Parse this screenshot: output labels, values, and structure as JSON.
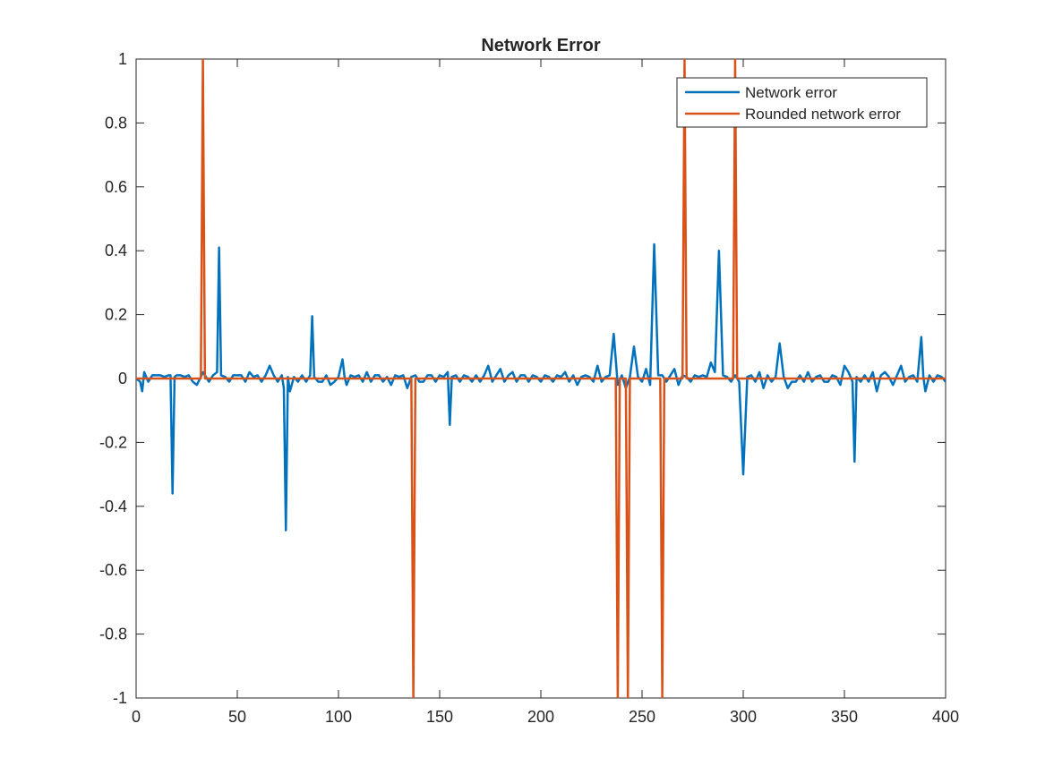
{
  "chart_data": {
    "type": "line",
    "title": "Network Error",
    "xlabel": "",
    "ylabel": "",
    "xlim": [
      0,
      400
    ],
    "ylim": [
      -1,
      1
    ],
    "xticks": [
      0,
      50,
      100,
      150,
      200,
      250,
      300,
      350,
      400
    ],
    "xtick_labels": [
      "0",
      "50",
      "100",
      "150",
      "200",
      "250",
      "300",
      "350",
      "400"
    ],
    "yticks": [
      -1,
      -0.8,
      -0.6,
      -0.4,
      -0.2,
      0,
      0.2,
      0.4,
      0.6,
      0.8,
      1
    ],
    "ytick_labels": [
      "-1",
      "-0.8",
      "-0.6",
      "-0.4",
      "-0.2",
      "0",
      "0.2",
      "0.4",
      "0.6",
      "0.8",
      "1"
    ],
    "grid": false,
    "legend_position": "top-right",
    "series": [
      {
        "name": "Network error",
        "color": "#0072BD",
        "x": [
          0,
          2,
          3,
          4,
          6,
          8,
          10,
          12,
          14,
          16,
          17,
          18,
          19,
          20,
          22,
          24,
          26,
          28,
          30,
          32,
          33,
          34,
          36,
          38,
          40,
          41,
          42,
          44,
          46,
          48,
          50,
          52,
          54,
          56,
          58,
          60,
          62,
          64,
          66,
          68,
          70,
          72,
          73,
          74,
          75,
          76,
          78,
          80,
          82,
          84,
          86,
          87,
          88,
          90,
          92,
          94,
          96,
          98,
          100,
          102,
          103,
          104,
          106,
          108,
          110,
          112,
          114,
          116,
          118,
          120,
          122,
          124,
          126,
          128,
          130,
          132,
          134,
          136,
          138,
          140,
          142,
          144,
          146,
          148,
          150,
          152,
          154,
          155,
          156,
          158,
          160,
          162,
          164,
          166,
          168,
          170,
          172,
          174,
          176,
          178,
          180,
          182,
          184,
          186,
          188,
          190,
          192,
          194,
          196,
          198,
          200,
          202,
          204,
          206,
          208,
          210,
          212,
          214,
          216,
          218,
          220,
          222,
          224,
          226,
          228,
          230,
          232,
          234,
          236,
          238,
          240,
          242,
          244,
          246,
          248,
          250,
          252,
          254,
          256,
          258,
          260,
          262,
          264,
          266,
          268,
          270,
          272,
          274,
          276,
          278,
          280,
          282,
          284,
          286,
          288,
          290,
          292,
          294,
          296,
          298,
          300,
          302,
          304,
          306,
          308,
          310,
          312,
          314,
          316,
          318,
          320,
          322,
          324,
          326,
          328,
          330,
          332,
          334,
          336,
          338,
          340,
          342,
          344,
          346,
          348,
          350,
          352,
          354,
          355,
          356,
          358,
          360,
          362,
          364,
          366,
          368,
          370,
          372,
          374,
          376,
          378,
          380,
          382,
          384,
          386,
          388,
          389,
          390,
          392,
          394,
          396,
          398,
          400
        ],
        "values": [
          0,
          -0.01,
          -0.04,
          0.02,
          -0.01,
          0.01,
          0.01,
          0.01,
          0.005,
          0.01,
          0.01,
          -0.36,
          0.005,
          0.01,
          0.01,
          0.005,
          0.01,
          -0.01,
          -0.02,
          0.005,
          0.02,
          0.01,
          -0.01,
          0.01,
          0.02,
          0.41,
          0.01,
          0.005,
          -0.01,
          0.01,
          0.01,
          0.01,
          -0.01,
          0.02,
          0.005,
          0.01,
          -0.01,
          0.01,
          0.04,
          0.01,
          -0.01,
          0.01,
          -0.03,
          -0.475,
          0.005,
          -0.04,
          0.005,
          -0.01,
          0.01,
          -0.01,
          0.01,
          0.195,
          0.005,
          -0.01,
          -0.01,
          0.01,
          -0.02,
          -0.01,
          0.005,
          0.06,
          0.005,
          -0.02,
          0.01,
          0.005,
          0.01,
          -0.01,
          0.02,
          -0.01,
          0.01,
          0.01,
          -0.01,
          0.005,
          -0.02,
          0.01,
          0.005,
          0.01,
          -0.03,
          0.005,
          0.01,
          -0.01,
          -0.01,
          0.01,
          0.01,
          -0.01,
          0.01,
          0.005,
          0.02,
          -0.145,
          0.005,
          0.01,
          -0.01,
          0.01,
          0.005,
          -0.01,
          0.01,
          -0.01,
          0.01,
          0.04,
          -0.01,
          0.01,
          0.03,
          -0.01,
          0.01,
          0.02,
          -0.01,
          0.01,
          0.01,
          -0.01,
          0.01,
          0.005,
          -0.01,
          0.01,
          0.005,
          -0.01,
          0.01,
          0.005,
          0.02,
          -0.01,
          0.01,
          -0.02,
          0.005,
          0.01,
          0.005,
          -0.01,
          0.04,
          -0.01,
          0.005,
          0.01,
          0.14,
          -0.02,
          0.01,
          -0.03,
          0.005,
          0.1,
          0.005,
          -0.01,
          0.03,
          -0.02,
          0.42,
          0.01,
          0.01,
          -0.01,
          0.01,
          0.03,
          -0.02,
          0.01,
          0.005,
          -0.01,
          0.01,
          0.005,
          0.01,
          0.005,
          0.05,
          0.02,
          0.4,
          0.01,
          0.005,
          -0.01,
          0.01,
          -0.01,
          -0.3,
          0.005,
          0.01,
          -0.01,
          0.02,
          -0.03,
          0.01,
          -0.01,
          0.005,
          0.11,
          0.005,
          -0.03,
          -0.01,
          -0.01,
          0.01,
          -0.01,
          0.02,
          -0.01,
          0.005,
          0.01,
          -0.01,
          -0.01,
          0.01,
          0.005,
          -0.02,
          0.04,
          0.02,
          -0.01,
          -0.26,
          0.005,
          -0.01,
          0.01,
          -0.01,
          0.02,
          -0.04,
          0.01,
          0.02,
          0.005,
          -0.02,
          0.01,
          0.04,
          -0.01,
          0.005,
          0.01,
          -0.01,
          0.13,
          0.005,
          -0.04,
          0.01,
          -0.01,
          0.01,
          0.005,
          -0.01
        ]
      },
      {
        "name": "Rounded network error",
        "color": "#D95319",
        "x": [
          0,
          32,
          33,
          34,
          136,
          137,
          138,
          237,
          238,
          239,
          242,
          243,
          244,
          259,
          260,
          261,
          270,
          271,
          272,
          295,
          296,
          297,
          400
        ],
        "values": [
          0,
          0,
          1,
          0,
          0,
          -1,
          0,
          0,
          -1,
          0,
          0,
          -1,
          0,
          0,
          -1,
          0,
          0,
          1,
          0,
          0,
          1,
          0,
          0
        ]
      }
    ]
  }
}
